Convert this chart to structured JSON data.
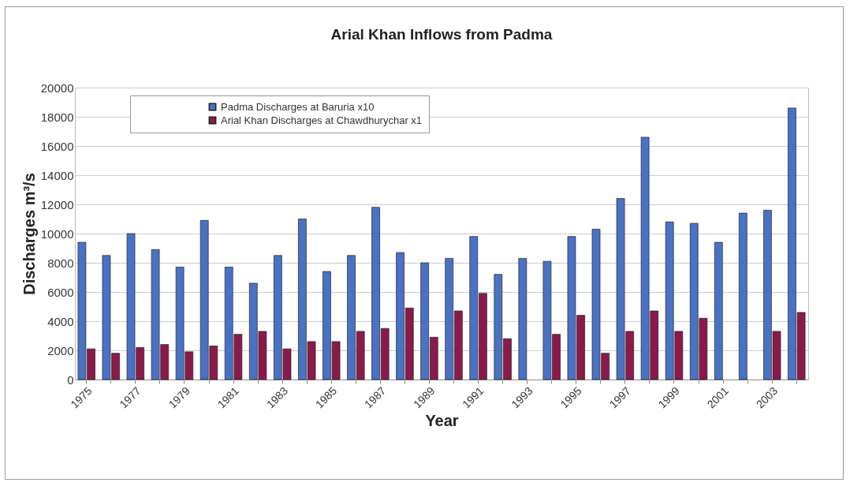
{
  "chart_data": {
    "type": "bar",
    "title": "Arial Khan Inflows from Padma",
    "xlabel": "Year",
    "ylabel": "Discharges m³/s",
    "categories": [
      "1975",
      null,
      "1977",
      null,
      "1979",
      null,
      "1981",
      null,
      "1983",
      null,
      "1985",
      null,
      "1987",
      null,
      "1989",
      null,
      "1991",
      null,
      "1993",
      null,
      "1995",
      null,
      "1997",
      null,
      "1999",
      null,
      "2001",
      null,
      "2003",
      null
    ],
    "series": [
      {
        "name": "Padma Discharges at Baruria x10",
        "color": "#4a72c4",
        "values": [
          9400,
          8500,
          10000,
          8900,
          7700,
          10900,
          7700,
          6600,
          8500,
          11000,
          7400,
          8500,
          11800,
          8700,
          8000,
          8300,
          9800,
          7200,
          8300,
          8100,
          9800,
          10300,
          12400,
          16600,
          10800,
          10700,
          9400,
          11400,
          11600,
          18600
        ]
      },
      {
        "name": "Arial Khan Discharges at Chawdhurychar x1",
        "color": "#8b1a4a",
        "values": [
          2100,
          1800,
          2200,
          2400,
          1900,
          2300,
          3100,
          3300,
          2100,
          2600,
          2600,
          3300,
          3500,
          4900,
          2900,
          4700,
          5900,
          2800,
          null,
          3100,
          4400,
          1800,
          3300,
          4700,
          3300,
          4200,
          null,
          null,
          3300,
          4600
        ]
      }
    ],
    "ylim": [
      0,
      20000
    ],
    "yticks": [
      0,
      2000,
      4000,
      6000,
      8000,
      10000,
      12000,
      14000,
      16000,
      18000,
      20000
    ],
    "grid": "y",
    "legend": "top left"
  }
}
